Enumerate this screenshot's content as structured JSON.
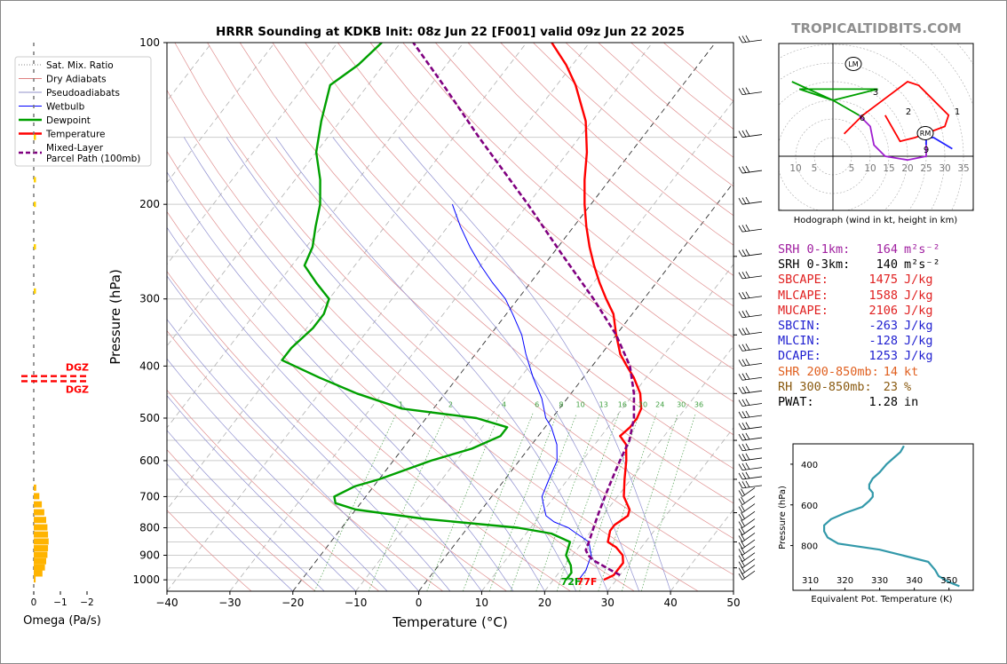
{
  "branding": {
    "site": "TROPICALTIDBITS.COM"
  },
  "chart_data": {
    "type": "line",
    "title": "HRRR Sounding at KDKB Init: 08z Jun 22 [F001] valid 09z Jun 22 2025",
    "xlabel": "Temperature (°C)",
    "ylabel": "Pressure (hPa)",
    "xlim": [
      -40,
      50
    ],
    "ylim": [
      1050,
      100
    ],
    "x_ticks": [
      "−40",
      "−30",
      "−20",
      "−10",
      "0",
      "10",
      "20",
      "30",
      "40",
      "50"
    ],
    "y_ticks": [
      {
        "p": 100,
        "label": "100"
      },
      {
        "p": 200,
        "label": "200"
      },
      {
        "p": 300,
        "label": "300"
      },
      {
        "p": 400,
        "label": "400"
      },
      {
        "p": 500,
        "label": "500"
      },
      {
        "p": 600,
        "label": "600"
      },
      {
        "p": 700,
        "label": "700"
      },
      {
        "p": 800,
        "label": "800"
      },
      {
        "p": 900,
        "label": "900"
      },
      {
        "p": 1000,
        "label": "1000"
      }
    ],
    "y_scale": "log",
    "legend": {
      "position": "left",
      "entries": [
        {
          "label": "Sat. Mix. Ratio",
          "color": "#888888",
          "style": "dotted"
        },
        {
          "label": "Dry Adiabats",
          "color": "#e08080",
          "style": "solid"
        },
        {
          "label": "Pseudoadiabats",
          "color": "#9090c8",
          "style": "solid"
        },
        {
          "label": "Wetbulb",
          "color": "#0000ff",
          "style": "solid"
        },
        {
          "label": "Dewpoint",
          "color": "#00a000",
          "style": "solid"
        },
        {
          "label": "Temperature",
          "color": "#ff0000",
          "style": "solid"
        },
        {
          "label": "Mixed-Layer\nParcel Path (100mb)",
          "color": "#800080",
          "style": "dashed"
        }
      ]
    },
    "mixing_ratio_labels": [
      "1",
      "2",
      "4",
      "6",
      "8",
      "10",
      "13",
      "16",
      "20",
      "24",
      "30",
      "36"
    ],
    "mixing_ratio_values": [
      1,
      2,
      4,
      6,
      8,
      10,
      13,
      16,
      20,
      24,
      30,
      36
    ],
    "surface_labels": {
      "dewpoint": "72F",
      "temperature": "77F"
    },
    "series": [
      {
        "name": "Temperature",
        "color": "#ff0000",
        "points": [
          [
            1000,
            28
          ],
          [
            980,
            29
          ],
          [
            960,
            29
          ],
          [
            930,
            29
          ],
          [
            900,
            28
          ],
          [
            870,
            26
          ],
          [
            850,
            24
          ],
          [
            810,
            23
          ],
          [
            790,
            23
          ],
          [
            760,
            24
          ],
          [
            740,
            23.5
          ],
          [
            700,
            21
          ],
          [
            650,
            19
          ],
          [
            600,
            17
          ],
          [
            560,
            15
          ],
          [
            540,
            13
          ],
          [
            520,
            13.5
          ],
          [
            500,
            13.5
          ],
          [
            480,
            13
          ],
          [
            450,
            11
          ],
          [
            420,
            8
          ],
          [
            400,
            5.5
          ],
          [
            380,
            3
          ],
          [
            350,
            0
          ],
          [
            320,
            -3
          ],
          [
            300,
            -6
          ],
          [
            280,
            -9
          ],
          [
            260,
            -12
          ],
          [
            240,
            -15
          ],
          [
            220,
            -18
          ],
          [
            200,
            -21
          ],
          [
            180,
            -24
          ],
          [
            160,
            -27
          ],
          [
            140,
            -31
          ],
          [
            120,
            -37
          ],
          [
            110,
            -41
          ],
          [
            100,
            -46
          ]
        ]
      },
      {
        "name": "Dewpoint",
        "color": "#00a000",
        "points": [
          [
            1000,
            22
          ],
          [
            970,
            22
          ],
          [
            940,
            21
          ],
          [
            900,
            19
          ],
          [
            850,
            18
          ],
          [
            820,
            14
          ],
          [
            800,
            8
          ],
          [
            770,
            -8
          ],
          [
            740,
            -20
          ],
          [
            720,
            -24
          ],
          [
            700,
            -25
          ],
          [
            670,
            -23
          ],
          [
            650,
            -20
          ],
          [
            600,
            -14
          ],
          [
            570,
            -9
          ],
          [
            540,
            -6
          ],
          [
            520,
            -6
          ],
          [
            500,
            -12
          ],
          [
            480,
            -25
          ],
          [
            450,
            -34
          ],
          [
            420,
            -42
          ],
          [
            390,
            -50
          ],
          [
            370,
            -50
          ],
          [
            340,
            -49
          ],
          [
            320,
            -49
          ],
          [
            300,
            -50
          ],
          [
            280,
            -54
          ],
          [
            260,
            -58
          ],
          [
            240,
            -59
          ],
          [
            220,
            -61
          ],
          [
            200,
            -63
          ],
          [
            180,
            -66
          ],
          [
            160,
            -70
          ],
          [
            140,
            -73
          ],
          [
            120,
            -76
          ],
          [
            110,
            -74
          ],
          [
            100,
            -73
          ]
        ]
      },
      {
        "name": "Wetbulb",
        "color": "#0000ff",
        "points": [
          [
            1000,
            24
          ],
          [
            960,
            24
          ],
          [
            900,
            23
          ],
          [
            850,
            21
          ],
          [
            820,
            18
          ],
          [
            800,
            16
          ],
          [
            780,
            13
          ],
          [
            760,
            11
          ],
          [
            740,
            10
          ],
          [
            720,
            9
          ],
          [
            700,
            8
          ],
          [
            650,
            7
          ],
          [
            600,
            6
          ],
          [
            560,
            4
          ],
          [
            520,
            1
          ],
          [
            500,
            -1
          ],
          [
            460,
            -4
          ],
          [
            420,
            -8
          ],
          [
            380,
            -12
          ],
          [
            350,
            -15
          ],
          [
            320,
            -19
          ],
          [
            300,
            -22
          ],
          [
            280,
            -26
          ],
          [
            260,
            -30
          ],
          [
            240,
            -34
          ],
          [
            220,
            -38
          ],
          [
            200,
            -42
          ]
        ]
      },
      {
        "name": "Mixed-Layer Parcel Path",
        "color": "#800080",
        "style": "dashed",
        "points": [
          [
            980,
            30
          ],
          [
            950,
            27
          ],
          [
            920,
            24
          ],
          [
            900,
            22.5
          ],
          [
            880,
            21.5
          ],
          [
            850,
            21
          ],
          [
            800,
            20
          ],
          [
            750,
            19
          ],
          [
            700,
            18
          ],
          [
            650,
            17
          ],
          [
            600,
            16
          ],
          [
            550,
            15
          ],
          [
            500,
            13
          ],
          [
            450,
            10
          ],
          [
            400,
            6
          ],
          [
            350,
            0
          ],
          [
            300,
            -8
          ],
          [
            250,
            -18
          ],
          [
            200,
            -30
          ],
          [
            150,
            -46
          ],
          [
            120,
            -58
          ],
          [
            100,
            -68
          ]
        ]
      }
    ]
  },
  "omega_panel": {
    "xlabel": "Omega (Pa/s)",
    "ticks": [
      "0",
      "−1",
      "−2"
    ],
    "dgz_labels": [
      "DGZ",
      "DGZ"
    ],
    "dgz_pressures": [
      390,
      440
    ]
  },
  "hodograph": {
    "caption": "Hodograph (wind in kt, height in km)",
    "x_ticks": [
      "10",
      "5",
      "5",
      "10",
      "15",
      "20",
      "25",
      "30",
      "35"
    ],
    "x_tick_values": [
      -10,
      -5,
      5,
      10,
      15,
      20,
      25,
      30,
      35
    ],
    "markers": [
      "LM",
      "RM"
    ],
    "height_labels": [
      "1",
      "2",
      "3",
      "6",
      "9"
    ]
  },
  "parameters": [
    {
      "label": "SRH 0-1km:",
      "value": "164",
      "unit": "m²s⁻²",
      "color": "#a020a0"
    },
    {
      "label": "SRH 0-3km:",
      "value": "140",
      "unit": "m²s⁻²",
      "color": "#000000"
    },
    {
      "label": "SBCAPE:",
      "value": "1475",
      "unit": "J/kg",
      "color": "#e02020"
    },
    {
      "label": "MLCAPE:",
      "value": "1588",
      "unit": "J/kg",
      "color": "#e02020"
    },
    {
      "label": "MUCAPE:",
      "value": "2106",
      "unit": "J/kg",
      "color": "#e02020"
    },
    {
      "label": "SBCIN:",
      "value": "-263",
      "unit": "J/kg",
      "color": "#2020d0"
    },
    {
      "label": "MLCIN:",
      "value": "-128",
      "unit": "J/kg",
      "color": "#2020d0"
    },
    {
      "label": "DCAPE:",
      "value": "1253",
      "unit": "J/kg",
      "color": "#2020d0"
    },
    {
      "label": "SHR 200-850mb:",
      "value": "14",
      "unit": "kt",
      "color": "#e06020"
    },
    {
      "label": "RH 300-850mb:",
      "value": "23",
      "unit": "%",
      "color": "#8a5a10"
    },
    {
      "label": "PWAT:",
      "value": "1.28",
      "unit": "in",
      "color": "#000000"
    }
  ],
  "theta_e_panel": {
    "xlabel": "Equivalent Pot. Temperature (K)",
    "ylabel": "Pressure (hPa)",
    "x_ticks": [
      "310",
      "320",
      "330",
      "340",
      "350"
    ],
    "x_tick_values": [
      310,
      320,
      330,
      340,
      350
    ],
    "y_ticks": [
      "400",
      "600",
      "800"
    ],
    "y_tick_values": [
      400,
      600,
      800
    ],
    "points": [
      [
        1000,
        353
      ],
      [
        980,
        350
      ],
      [
        950,
        347
      ],
      [
        920,
        346
      ],
      [
        880,
        344
      ],
      [
        850,
        337
      ],
      [
        820,
        330
      ],
      [
        790,
        318
      ],
      [
        760,
        315
      ],
      [
        730,
        314
      ],
      [
        700,
        314
      ],
      [
        670,
        316
      ],
      [
        640,
        320
      ],
      [
        610,
        325
      ],
      [
        580,
        327
      ],
      [
        560,
        328
      ],
      [
        540,
        328
      ],
      [
        520,
        327
      ],
      [
        500,
        327
      ],
      [
        470,
        328
      ],
      [
        440,
        330
      ],
      [
        400,
        332
      ],
      [
        370,
        334
      ],
      [
        340,
        336
      ],
      [
        310,
        337
      ]
    ]
  }
}
